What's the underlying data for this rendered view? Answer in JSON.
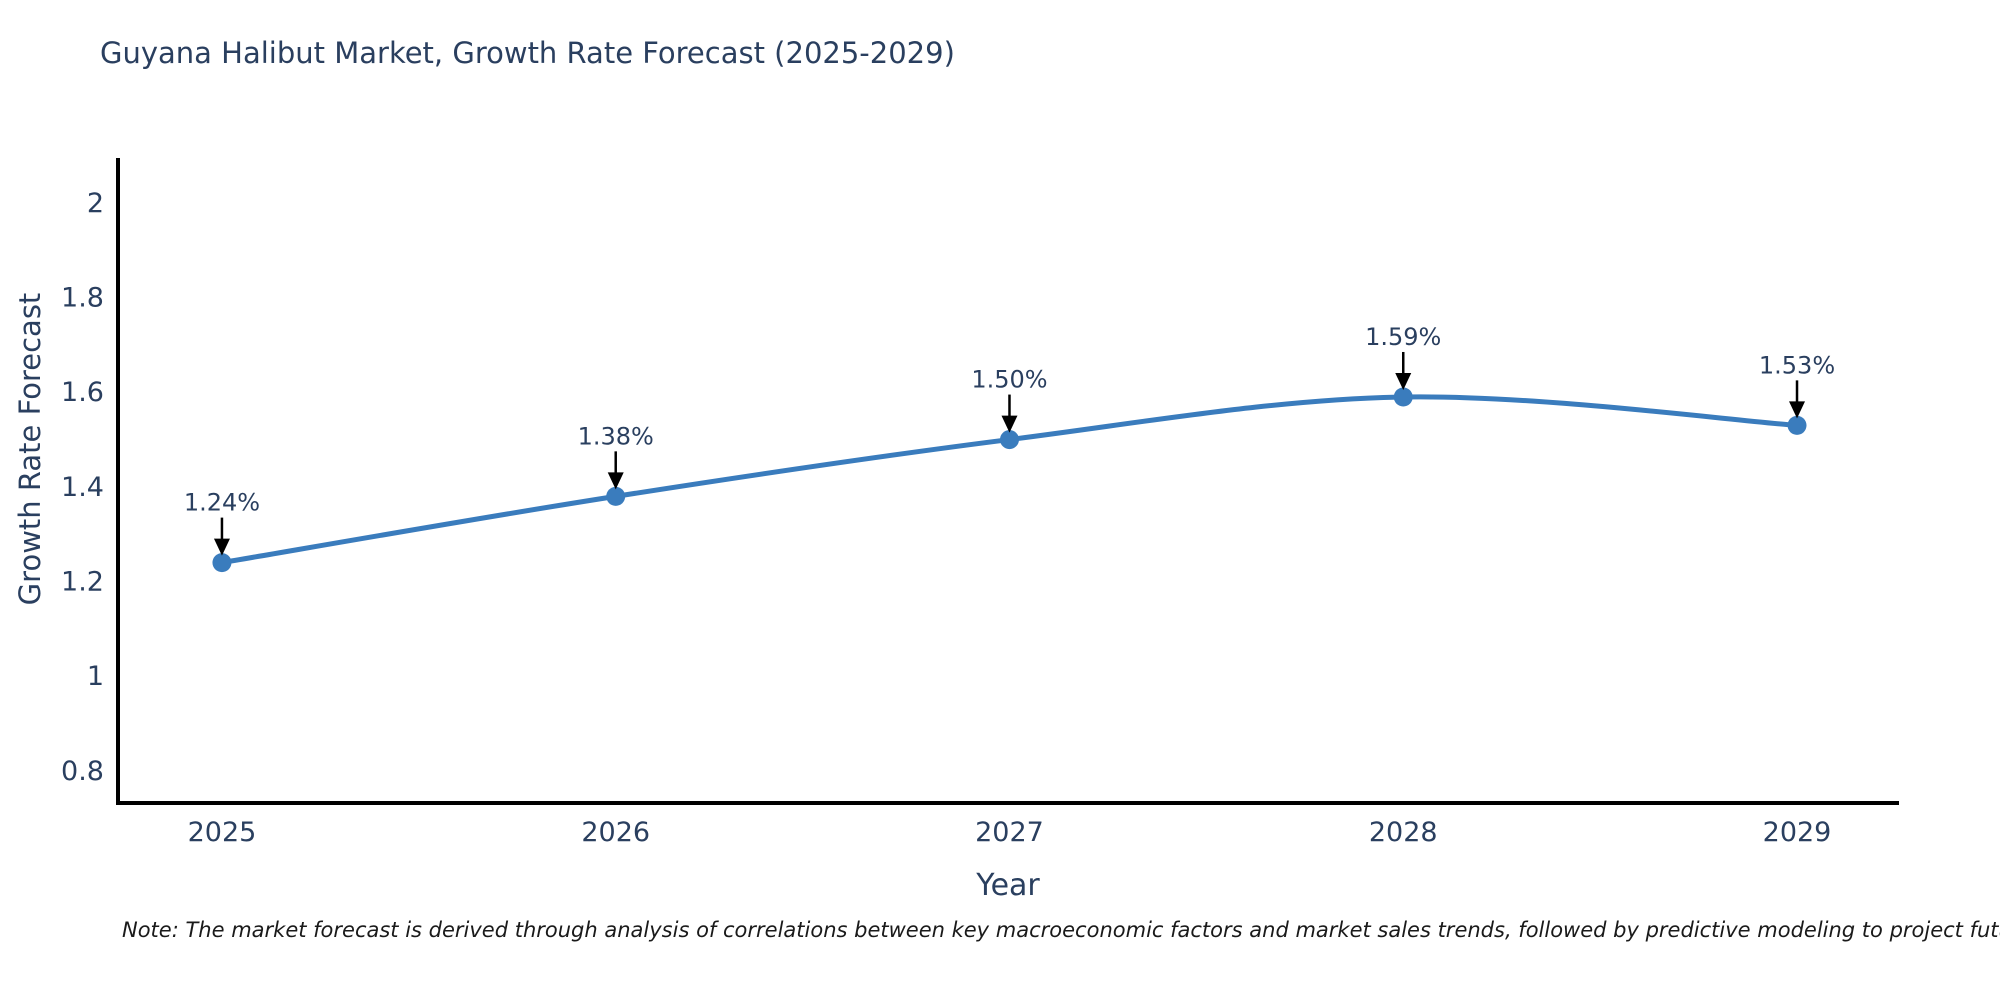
{
  "header": {
    "title": "Guyana Halibut Market, Growth Rate Forecast (2025-2029)"
  },
  "footnote": {
    "text": "Note: The market forecast is derived through analysis of correlations between key macroeconomic factors and market sales trends, followed by predictive modeling to project future sales"
  },
  "chart_data": {
    "type": "line",
    "title": "Guyana Halibut Market, Growth Rate Forecast (2025-2029)",
    "xlabel": "Year",
    "ylabel": "Growth Rate Forecast",
    "x": [
      2025,
      2026,
      2027,
      2028,
      2029
    ],
    "series": [
      {
        "name": "Growth Rate Forecast",
        "values": [
          1.24,
          1.38,
          1.5,
          1.59,
          1.53
        ]
      }
    ],
    "point_labels": [
      "1.24%",
      "1.38%",
      "1.50%",
      "1.59%",
      "1.53%"
    ],
    "xtick_labels": [
      "2025",
      "2026",
      "2027",
      "2028",
      "2029"
    ],
    "ytick_values": [
      0.8,
      1.0,
      1.2,
      1.4,
      1.6,
      1.8,
      2.0
    ],
    "ytick_labels": [
      "0.8",
      "1",
      "1.2",
      "1.4",
      "1.6",
      "1.8",
      "2"
    ],
    "xlim": [
      2024.736,
      2029.259
    ],
    "ylim": [
      0.732,
      2.095
    ],
    "grid": false,
    "legend_position": "none",
    "line_shape": "spline",
    "colors": {
      "line": "#3a7cbd",
      "marker": "#3a7cbd",
      "axis": "#000000",
      "text": "#2a3f5f",
      "annotation_arrow": "#000000"
    }
  }
}
